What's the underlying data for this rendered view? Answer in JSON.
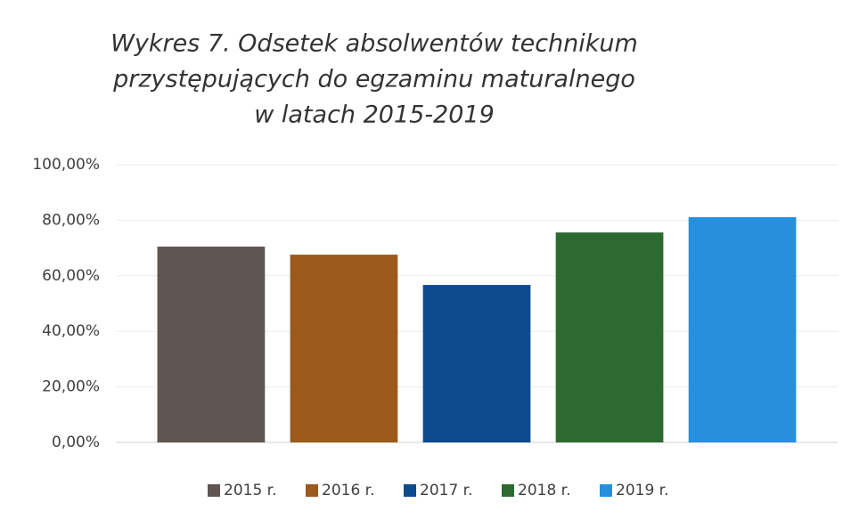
{
  "chart_data": {
    "type": "bar",
    "title": [
      "Wykres 7. Odsetek absolwentów technikum",
      "przystępujących do egzaminu maturalnego",
      "w latach 2015-2019"
    ],
    "categories": [
      null
    ],
    "series": [
      {
        "name": "2015 r.",
        "color": "#5f5553",
        "values": [
          70.5
        ]
      },
      {
        "name": "2016 r.",
        "color": "#9a5a1c",
        "values": [
          67.6
        ]
      },
      {
        "name": "2017 r.",
        "color": "#0e4b8c",
        "values": [
          56.7
        ]
      },
      {
        "name": "2018 r.",
        "color": "#2d6a31",
        "values": [
          75.6
        ]
      },
      {
        "name": "2019 r.",
        "color": "#2690dc",
        "values": [
          81.1
        ]
      }
    ],
    "ylim": [
      0,
      100
    ],
    "yticks": [
      {
        "value": 0,
        "label": "0,00%"
      },
      {
        "value": 20,
        "label": "20,00%"
      },
      {
        "value": 40,
        "label": "40,00%"
      },
      {
        "value": 60,
        "label": "60,00%"
      },
      {
        "value": 80,
        "label": "80,00%"
      },
      {
        "value": 100,
        "label": "100,00%"
      }
    ],
    "grid": true,
    "legend": "bottom"
  }
}
